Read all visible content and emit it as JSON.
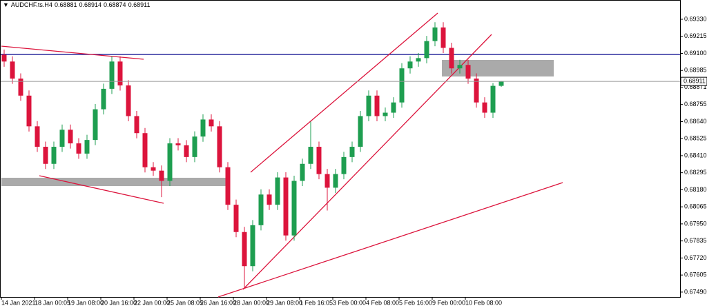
{
  "chart_data": {
    "type": "candlestick",
    "title": "AUDCHF.ts.H4",
    "categories": [
      "14 Jan 2021",
      null,
      null,
      null,
      "18 Jan 00:05",
      null,
      null,
      null,
      "19 Jan 08:00",
      null,
      null,
      null,
      "20 Jan 16:00",
      null,
      null,
      null,
      "22 Jan 00:00",
      null,
      null,
      null,
      "25 Jan 08:05",
      null,
      null,
      null,
      "26 Jan 16:00",
      null,
      null,
      null,
      "28 Jan 00:00",
      null,
      null,
      null,
      "29 Jan 08:00",
      null,
      null,
      null,
      "1 Feb 16:05",
      null,
      null,
      null,
      "3 Feb 00:00",
      null,
      null,
      null,
      "4 Feb 08:00",
      null,
      null,
      null,
      "5 Feb 16:00",
      null,
      null,
      null,
      "9 Feb 00:00",
      null,
      null,
      null,
      "10 Feb 08:00",
      null,
      null,
      null,
      null
    ],
    "open": [
      0.69091,
      0.69045,
      0.6893,
      0.68815,
      0.68608,
      0.6847,
      0.68355,
      0.6847,
      0.68585,
      0.68493,
      0.68424,
      0.68516,
      0.68723,
      0.68861,
      0.69045,
      0.68884,
      0.68677,
      0.68562,
      0.68332,
      0.68309,
      0.6824,
      0.68493,
      0.6848,
      0.68401,
      0.68539,
      0.68654,
      0.68608,
      0.68332,
      0.68079,
      0.67895,
      0.67665,
      0.67941,
      0.68148,
      0.68079,
      0.68263,
      0.67872,
      0.6824,
      0.68355,
      0.6847,
      0.68286,
      0.68194,
      0.68286,
      0.68401,
      0.6847,
      0.68677,
      0.68815,
      0.68677,
      0.687,
      0.68769,
      0.68999,
      0.69045,
      0.69068,
      0.69183,
      0.69275,
      0.69137,
      0.68999,
      0.69022,
      0.6893,
      0.68769,
      0.687,
      0.68881
    ],
    "high": [
      0.69126,
      0.6908,
      0.68965,
      0.6885,
      0.68643,
      0.68505,
      0.68505,
      0.6862,
      0.6862,
      0.68528,
      0.68551,
      0.68758,
      0.68896,
      0.6908,
      0.6908,
      0.68919,
      0.68712,
      0.68597,
      0.68367,
      0.68344,
      0.68528,
      0.68528,
      0.68515,
      0.68574,
      0.68689,
      0.68689,
      0.68643,
      0.68367,
      0.68114,
      0.6793,
      0.67976,
      0.68183,
      0.68183,
      0.68298,
      0.68298,
      0.68275,
      0.6839,
      0.6864,
      0.68505,
      0.68321,
      0.68321,
      0.68436,
      0.68505,
      0.68712,
      0.6885,
      0.6885,
      0.68735,
      0.68804,
      0.69034,
      0.6908,
      0.69103,
      0.69218,
      0.6931,
      0.6931,
      0.69172,
      0.69057,
      0.69057,
      0.68965,
      0.68804,
      0.689,
      0.68914
    ],
    "low": [
      0.6901,
      0.68895,
      0.6878,
      0.68573,
      0.68435,
      0.6832,
      0.6832,
      0.68435,
      0.68458,
      0.68389,
      0.68389,
      0.68481,
      0.68688,
      0.68826,
      0.68849,
      0.68642,
      0.68527,
      0.68297,
      0.68274,
      0.6813,
      0.68205,
      0.68445,
      0.68366,
      0.68366,
      0.68504,
      0.68573,
      0.68297,
      0.68044,
      0.6786,
      0.6752,
      0.6763,
      0.67906,
      0.68044,
      0.68044,
      0.67837,
      0.67837,
      0.68205,
      0.6832,
      0.68251,
      0.6804,
      0.68159,
      0.68251,
      0.68366,
      0.68435,
      0.68642,
      0.68642,
      0.68642,
      0.68665,
      0.68734,
      0.68964,
      0.6901,
      0.69033,
      0.69148,
      0.69102,
      0.68964,
      0.68964,
      0.68895,
      0.68734,
      0.68665,
      0.68665,
      0.68874
    ],
    "close": [
      0.69045,
      0.6893,
      0.68815,
      0.68608,
      0.6847,
      0.68355,
      0.6847,
      0.68585,
      0.68493,
      0.68424,
      0.68516,
      0.68723,
      0.68861,
      0.69045,
      0.68884,
      0.68677,
      0.68562,
      0.68332,
      0.68309,
      0.6824,
      0.68493,
      0.6848,
      0.68401,
      0.68539,
      0.68654,
      0.68608,
      0.68332,
      0.68079,
      0.67895,
      0.67665,
      0.67941,
      0.68148,
      0.68079,
      0.68263,
      0.67872,
      0.6824,
      0.68355,
      0.6847,
      0.68286,
      0.68194,
      0.68286,
      0.68401,
      0.6847,
      0.68677,
      0.68815,
      0.68677,
      0.687,
      0.68769,
      0.68999,
      0.69045,
      0.69068,
      0.69183,
      0.69275,
      0.69137,
      0.68999,
      0.69022,
      0.6893,
      0.68769,
      0.687,
      0.68881,
      0.68911
    ],
    "up_color": "#1e9e50",
    "down_color": "#dc143c",
    "ylim": [
      0.67457,
      0.6946
    ],
    "yticks": [
      {
        "value": 0.6933,
        "label": "0.69330"
      },
      0.69215,
      {
        "value": 0.691,
        "label": "0.69100"
      },
      0.68985,
      0.68871,
      0.68755,
      {
        "value": 0.6864,
        "label": "0.68640"
      },
      0.68525,
      {
        "value": 0.6841,
        "label": "0.68410"
      },
      0.68295,
      {
        "value": 0.6818,
        "label": "0.68180"
      },
      0.68065,
      {
        "value": 0.6795,
        "label": "0.67950"
      },
      0.67835,
      {
        "value": 0.6772,
        "label": "0.67720"
      },
      0.67605,
      {
        "value": 0.6749,
        "label": "0.67490"
      }
    ],
    "grid": false
  }
}
